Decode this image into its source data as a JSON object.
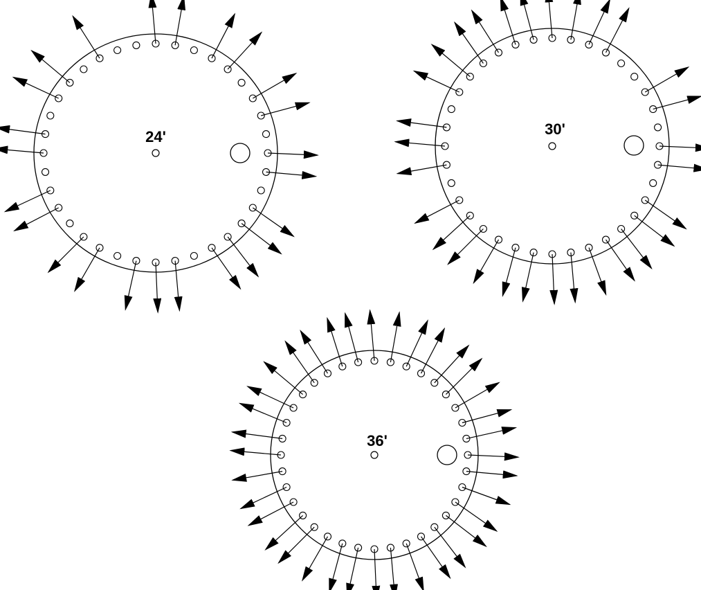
{
  "diagrams": [
    {
      "label": "24'",
      "hole_count": 36,
      "arrow_count": 24,
      "arrow_pattern": "pairs-with-gaps"
    },
    {
      "label": "30'",
      "hole_count": 36,
      "arrow_count": 30,
      "arrow_pattern": "mostly-continuous"
    },
    {
      "label": "36'",
      "hole_count": 36,
      "arrow_count": 36,
      "arrow_pattern": "every-hole"
    }
  ],
  "colors": {
    "line": "#000000",
    "background": "#ffffff"
  }
}
